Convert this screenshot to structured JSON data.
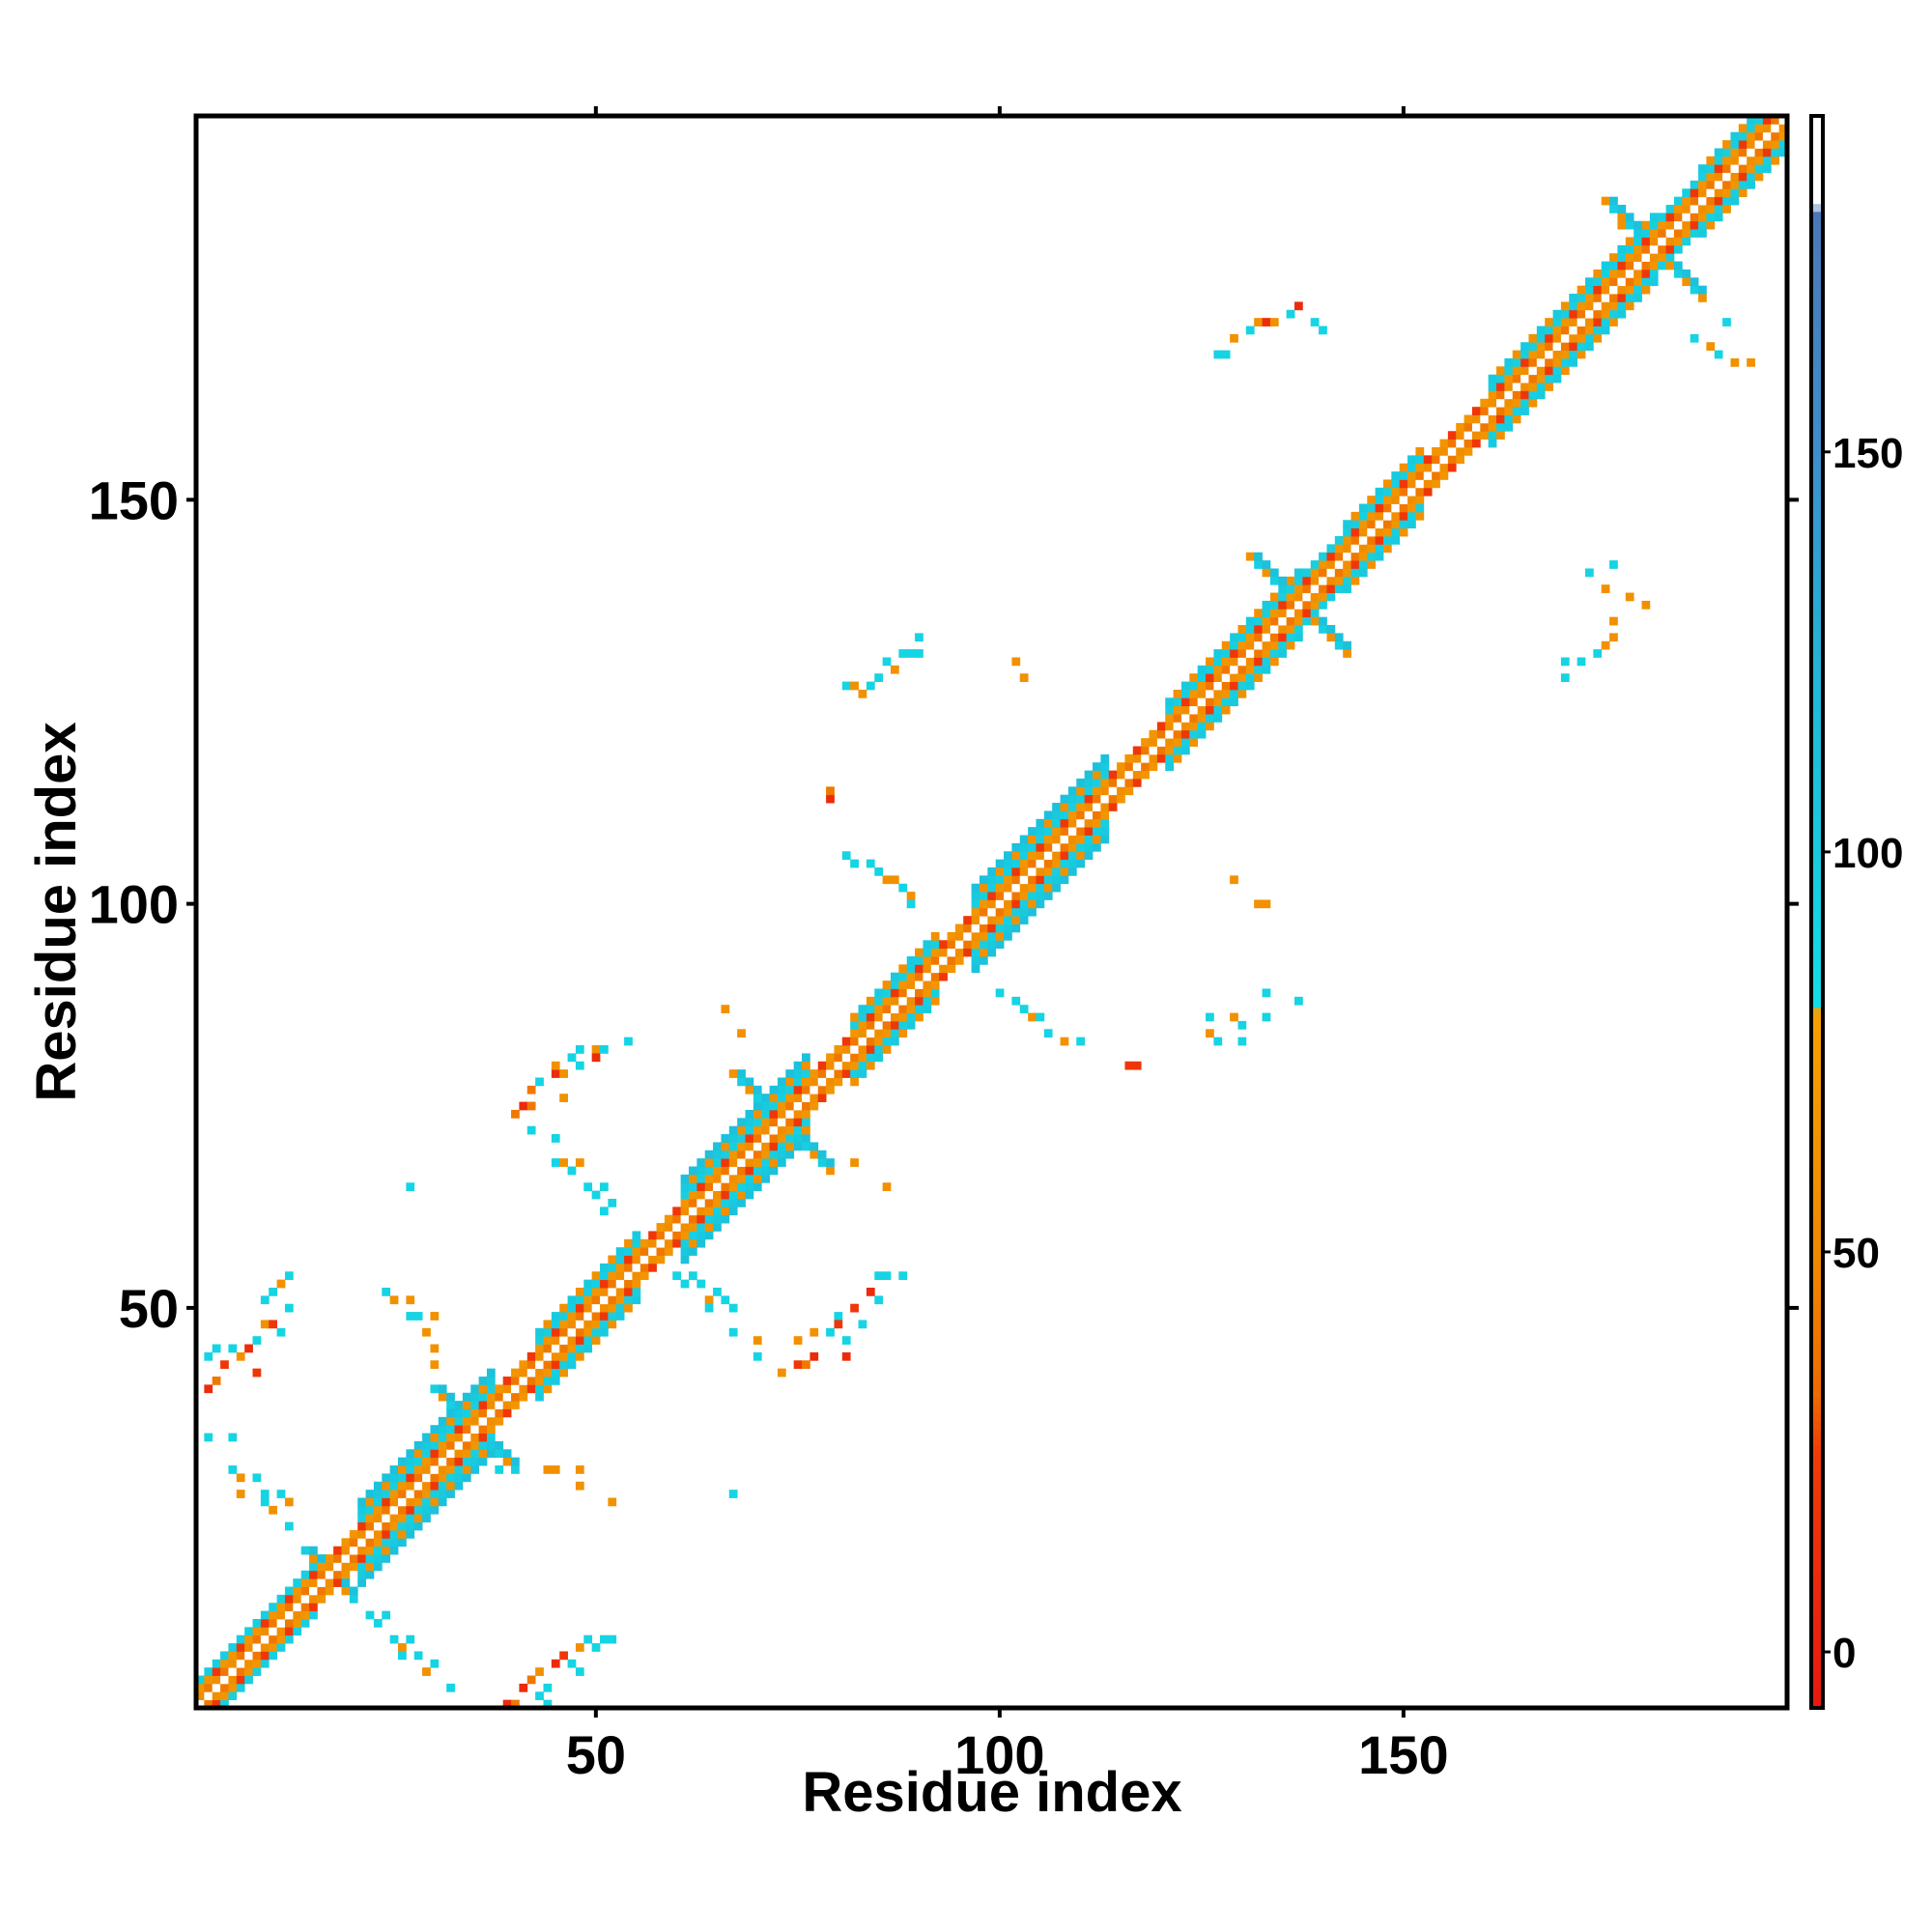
{
  "chart_data": {
    "type": "heatmap",
    "title": "",
    "xlabel": "Residue index",
    "ylabel": "Residue index",
    "xlim": [
      1,
      197
    ],
    "ylim": [
      1,
      197
    ],
    "x_ticks": [
      50,
      100,
      150
    ],
    "y_ticks": [
      50,
      100,
      150
    ],
    "grid": false,
    "colorbar": {
      "ticks": [
        0,
        50,
        100,
        150
      ],
      "range": [
        -7,
        192
      ],
      "bands": [
        {
          "from": -7,
          "to": 30,
          "color": "#e8180f"
        },
        {
          "from": 30,
          "to": 80,
          "color": "#f07a00"
        },
        {
          "from": 80,
          "to": 180,
          "color": "#12dce6"
        },
        {
          "from": 180,
          "to": 192,
          "color": "#ffffff"
        }
      ],
      "stops": [
        {
          "value": -7,
          "color": "#e8180f"
        },
        {
          "value": 25,
          "color": "#f03c08"
        },
        {
          "value": 32,
          "color": "#f06a00"
        },
        {
          "value": 50,
          "color": "#f08a00"
        },
        {
          "value": 80,
          "color": "#f5a000"
        },
        {
          "value": 81,
          "color": "#12dce6"
        },
        {
          "value": 120,
          "color": "#20b8d8"
        },
        {
          "value": 150,
          "color": "#3d8fcc"
        },
        {
          "value": 180,
          "color": "#4a78b8"
        },
        {
          "value": 181,
          "color": "#ffffff"
        },
        {
          "value": 192,
          "color": "#ffffff"
        }
      ]
    },
    "diagonal_band": {
      "x_range": [
        1,
        197
      ],
      "half_width_residues": 4,
      "wide_segments": [
        {
          "from": 1,
          "to": 15,
          "half_width": 3
        },
        {
          "from": 15,
          "to": 20,
          "half_width": 2
        },
        {
          "from": 20,
          "to": 37,
          "half_width": 5
        },
        {
          "from": 37,
          "to": 42,
          "half_width": 2
        },
        {
          "from": 42,
          "to": 55,
          "half_width": 4
        },
        {
          "from": 55,
          "to": 60,
          "half_width": 2
        },
        {
          "from": 60,
          "to": 76,
          "half_width": 5
        },
        {
          "from": 76,
          "to": 81,
          "half_width": 2
        },
        {
          "from": 81,
          "to": 92,
          "half_width": 4
        },
        {
          "from": 92,
          "to": 96,
          "half_width": 2
        },
        {
          "from": 96,
          "to": 113,
          "half_width": 5
        },
        {
          "from": 113,
          "to": 120,
          "half_width": 2
        },
        {
          "from": 120,
          "to": 137,
          "half_width": 4
        },
        {
          "from": 137,
          "to": 142,
          "half_width": 3
        },
        {
          "from": 142,
          "to": 152,
          "half_width": 4
        },
        {
          "from": 152,
          "to": 160,
          "half_width": 2
        },
        {
          "from": 160,
          "to": 181,
          "half_width": 4
        },
        {
          "from": 181,
          "to": 186,
          "half_width": 3
        },
        {
          "from": 186,
          "to": 197,
          "half_width": 4
        }
      ]
    },
    "off_diagonal_contacts": [
      {
        "x": 2,
        "y": 40,
        "v": 10
      },
      {
        "x": 3,
        "y": 41,
        "v": 40
      },
      {
        "x": 2,
        "y": 44,
        "v": 90
      },
      {
        "x": 3,
        "y": 45,
        "v": 90
      },
      {
        "x": 4,
        "y": 43,
        "v": 20
      },
      {
        "x": 5,
        "y": 45,
        "v": 90
      },
      {
        "x": 6,
        "y": 44,
        "v": 60
      },
      {
        "x": 7,
        "y": 45,
        "v": 10
      },
      {
        "x": 8,
        "y": 46,
        "v": 90
      },
      {
        "x": 8,
        "y": 42,
        "v": 20
      },
      {
        "x": 9,
        "y": 48,
        "v": 60
      },
      {
        "x": 10,
        "y": 48,
        "v": 20
      },
      {
        "x": 9,
        "y": 51,
        "v": 90
      },
      {
        "x": 10,
        "y": 52,
        "v": 90
      },
      {
        "x": 11,
        "y": 53,
        "v": 60
      },
      {
        "x": 12,
        "y": 50,
        "v": 90
      },
      {
        "x": 12,
        "y": 54,
        "v": 90
      },
      {
        "x": 11,
        "y": 47,
        "v": 90
      },
      {
        "x": 2,
        "y": 34,
        "v": 90
      },
      {
        "x": 5,
        "y": 34,
        "v": 90
      },
      {
        "x": 5,
        "y": 30,
        "v": 90
      },
      {
        "x": 6,
        "y": 29,
        "v": 60
      },
      {
        "x": 6,
        "y": 27,
        "v": 60
      },
      {
        "x": 8,
        "y": 29,
        "v": 90
      },
      {
        "x": 9,
        "y": 27,
        "v": 90
      },
      {
        "x": 9,
        "y": 26,
        "v": 90
      },
      {
        "x": 10,
        "y": 25,
        "v": 60
      },
      {
        "x": 11,
        "y": 27,
        "v": 90
      },
      {
        "x": 12,
        "y": 23,
        "v": 90
      },
      {
        "x": 12,
        "y": 26,
        "v": 60
      },
      {
        "x": 24,
        "y": 52,
        "v": 90
      },
      {
        "x": 25,
        "y": 51,
        "v": 60
      },
      {
        "x": 27,
        "y": 49,
        "v": 90
      },
      {
        "x": 27,
        "y": 51,
        "v": 60
      },
      {
        "x": 28,
        "y": 49,
        "v": 90
      },
      {
        "x": 30,
        "y": 49,
        "v": 60
      },
      {
        "x": 29,
        "y": 47,
        "v": 60
      },
      {
        "x": 30,
        "y": 45,
        "v": 60
      },
      {
        "x": 30,
        "y": 43,
        "v": 60
      },
      {
        "x": 27,
        "y": 65,
        "v": 90
      },
      {
        "x": 22,
        "y": 12,
        "v": 90
      },
      {
        "x": 23,
        "y": 11,
        "v": 90
      },
      {
        "x": 24,
        "y": 12,
        "v": 90
      },
      {
        "x": 25,
        "y": 9,
        "v": 90
      },
      {
        "x": 26,
        "y": 8,
        "v": 60
      },
      {
        "x": 26,
        "y": 7,
        "v": 90
      },
      {
        "x": 27,
        "y": 9,
        "v": 90
      },
      {
        "x": 28,
        "y": 7,
        "v": 90
      },
      {
        "x": 29,
        "y": 5,
        "v": 60
      },
      {
        "x": 30,
        "y": 6,
        "v": 90
      },
      {
        "x": 32,
        "y": 3,
        "v": 90
      },
      {
        "x": 39,
        "y": 1,
        "v": 10
      },
      {
        "x": 40,
        "y": 1,
        "v": 40
      },
      {
        "x": 41,
        "y": 3,
        "v": 10
      },
      {
        "x": 42,
        "y": 4,
        "v": 40
      },
      {
        "x": 43,
        "y": 2,
        "v": 90
      },
      {
        "x": 43,
        "y": 5,
        "v": 60
      },
      {
        "x": 44,
        "y": 3,
        "v": 90
      },
      {
        "x": 44,
        "y": 1,
        "v": 90
      },
      {
        "x": 45,
        "y": 6,
        "v": 10
      },
      {
        "x": 46,
        "y": 7,
        "v": 20
      },
      {
        "x": 47,
        "y": 6,
        "v": 90
      },
      {
        "x": 48,
        "y": 5,
        "v": 90
      },
      {
        "x": 48,
        "y": 8,
        "v": 60
      },
      {
        "x": 49,
        "y": 9,
        "v": 90
      },
      {
        "x": 50,
        "y": 8,
        "v": 90
      },
      {
        "x": 51,
        "y": 9,
        "v": 90
      },
      {
        "x": 52,
        "y": 9,
        "v": 90
      },
      {
        "x": 38,
        "y": 30,
        "v": 90
      },
      {
        "x": 40,
        "y": 30,
        "v": 90
      },
      {
        "x": 44,
        "y": 30,
        "v": 60
      },
      {
        "x": 45,
        "y": 30,
        "v": 60
      },
      {
        "x": 48,
        "y": 30,
        "v": 60
      },
      {
        "x": 48,
        "y": 28,
        "v": 60
      },
      {
        "x": 52,
        "y": 26,
        "v": 60
      },
      {
        "x": 40,
        "y": 74,
        "v": 40
      },
      {
        "x": 41,
        "y": 75,
        "v": 10
      },
      {
        "x": 42,
        "y": 75,
        "v": 40
      },
      {
        "x": 42,
        "y": 77,
        "v": 40
      },
      {
        "x": 43,
        "y": 78,
        "v": 90
      },
      {
        "x": 45,
        "y": 79,
        "v": 10
      },
      {
        "x": 46,
        "y": 79,
        "v": 60
      },
      {
        "x": 46,
        "y": 76,
        "v": 60
      },
      {
        "x": 45,
        "y": 80,
        "v": 60
      },
      {
        "x": 47,
        "y": 81,
        "v": 90
      },
      {
        "x": 48,
        "y": 80,
        "v": 90
      },
      {
        "x": 48,
        "y": 82,
        "v": 90
      },
      {
        "x": 50,
        "y": 82,
        "v": 60
      },
      {
        "x": 50,
        "y": 81,
        "v": 10
      },
      {
        "x": 51,
        "y": 82,
        "v": 90
      },
      {
        "x": 54,
        "y": 83,
        "v": 90
      },
      {
        "x": 42,
        "y": 72,
        "v": 90
      },
      {
        "x": 45,
        "y": 71,
        "v": 90
      },
      {
        "x": 45,
        "y": 68,
        "v": 90
      },
      {
        "x": 46,
        "y": 68,
        "v": 60
      },
      {
        "x": 47,
        "y": 67,
        "v": 90
      },
      {
        "x": 48,
        "y": 68,
        "v": 60
      },
      {
        "x": 49,
        "y": 65,
        "v": 90
      },
      {
        "x": 50,
        "y": 64,
        "v": 90
      },
      {
        "x": 51,
        "y": 65,
        "v": 90
      },
      {
        "x": 51,
        "y": 62,
        "v": 90
      },
      {
        "x": 52,
        "y": 63,
        "v": 90
      },
      {
        "x": 60,
        "y": 54,
        "v": 90
      },
      {
        "x": 61,
        "y": 53,
        "v": 90
      },
      {
        "x": 62,
        "y": 54,
        "v": 90
      },
      {
        "x": 63,
        "y": 53,
        "v": 90
      },
      {
        "x": 64,
        "y": 51,
        "v": 60
      },
      {
        "x": 65,
        "y": 52,
        "v": 90
      },
      {
        "x": 64,
        "y": 50,
        "v": 90
      },
      {
        "x": 67,
        "y": 47,
        "v": 90
      },
      {
        "x": 66,
        "y": 51,
        "v": 90
      },
      {
        "x": 67,
        "y": 50,
        "v": 90
      },
      {
        "x": 70,
        "y": 46,
        "v": 60
      },
      {
        "x": 70,
        "y": 44,
        "v": 90
      },
      {
        "x": 73,
        "y": 42,
        "v": 60
      },
      {
        "x": 75,
        "y": 43,
        "v": 20
      },
      {
        "x": 76,
        "y": 43,
        "v": 40
      },
      {
        "x": 77,
        "y": 44,
        "v": 10
      },
      {
        "x": 75,
        "y": 46,
        "v": 60
      },
      {
        "x": 77,
        "y": 47,
        "v": 60
      },
      {
        "x": 79,
        "y": 47,
        "v": 90
      },
      {
        "x": 80,
        "y": 49,
        "v": 90
      },
      {
        "x": 80,
        "y": 48,
        "v": 20
      },
      {
        "x": 81,
        "y": 46,
        "v": 90
      },
      {
        "x": 81,
        "y": 44,
        "v": 10
      },
      {
        "x": 82,
        "y": 50,
        "v": 20
      },
      {
        "x": 83,
        "y": 48,
        "v": 90
      },
      {
        "x": 84,
        "y": 52,
        "v": 10
      },
      {
        "x": 85,
        "y": 51,
        "v": 90
      },
      {
        "x": 86,
        "y": 54,
        "v": 90
      },
      {
        "x": 85,
        "y": 54,
        "v": 90
      },
      {
        "x": 88,
        "y": 54,
        "v": 90
      },
      {
        "x": 66,
        "y": 87,
        "v": 60
      },
      {
        "x": 68,
        "y": 84,
        "v": 60
      },
      {
        "x": 67,
        "y": 27,
        "v": 90
      },
      {
        "x": 74,
        "y": 70,
        "v": 90
      },
      {
        "x": 76,
        "y": 70,
        "v": 90
      },
      {
        "x": 78,
        "y": 69,
        "v": 90
      },
      {
        "x": 82,
        "y": 68,
        "v": 60
      },
      {
        "x": 86,
        "y": 65,
        "v": 60
      },
      {
        "x": 81,
        "y": 127,
        "v": 90
      },
      {
        "x": 82,
        "y": 127,
        "v": 60
      },
      {
        "x": 83,
        "y": 126,
        "v": 60
      },
      {
        "x": 84,
        "y": 127,
        "v": 90
      },
      {
        "x": 85,
        "y": 128,
        "v": 90
      },
      {
        "x": 86,
        "y": 130,
        "v": 90
      },
      {
        "x": 87,
        "y": 129,
        "v": 60
      },
      {
        "x": 88,
        "y": 131,
        "v": 90
      },
      {
        "x": 89,
        "y": 131,
        "v": 90
      },
      {
        "x": 90,
        "y": 131,
        "v": 90
      },
      {
        "x": 90,
        "y": 133,
        "v": 90
      },
      {
        "x": 79,
        "y": 113,
        "v": 10
      },
      {
        "x": 79,
        "y": 114,
        "v": 40
      },
      {
        "x": 81,
        "y": 106,
        "v": 90
      },
      {
        "x": 82,
        "y": 105,
        "v": 90
      },
      {
        "x": 84,
        "y": 105,
        "v": 90
      },
      {
        "x": 85,
        "y": 104,
        "v": 90
      },
      {
        "x": 86,
        "y": 103,
        "v": 60
      },
      {
        "x": 87,
        "y": 103,
        "v": 60
      },
      {
        "x": 88,
        "y": 102,
        "v": 90
      },
      {
        "x": 89,
        "y": 101,
        "v": 60
      },
      {
        "x": 89,
        "y": 100,
        "v": 90
      },
      {
        "x": 102,
        "y": 130,
        "v": 60
      },
      {
        "x": 103,
        "y": 128,
        "v": 60
      },
      {
        "x": 100,
        "y": 89,
        "v": 90
      },
      {
        "x": 102,
        "y": 88,
        "v": 90
      },
      {
        "x": 103,
        "y": 87,
        "v": 90
      },
      {
        "x": 104,
        "y": 86,
        "v": 60
      },
      {
        "x": 105,
        "y": 86,
        "v": 90
      },
      {
        "x": 106,
        "y": 84,
        "v": 90
      },
      {
        "x": 108,
        "y": 83,
        "v": 60
      },
      {
        "x": 110,
        "y": 83,
        "v": 90
      },
      {
        "x": 116,
        "y": 80,
        "v": 20
      },
      {
        "x": 117,
        "y": 80,
        "v": 20
      },
      {
        "x": 129,
        "y": 103,
        "v": 60
      },
      {
        "x": 132,
        "y": 100,
        "v": 60
      },
      {
        "x": 133,
        "y": 100,
        "v": 60
      },
      {
        "x": 126,
        "y": 84,
        "v": 60
      },
      {
        "x": 127,
        "y": 83,
        "v": 90
      },
      {
        "x": 126,
        "y": 86,
        "v": 90
      },
      {
        "x": 129,
        "y": 86,
        "v": 60
      },
      {
        "x": 130,
        "y": 85,
        "v": 90
      },
      {
        "x": 130,
        "y": 83,
        "v": 90
      },
      {
        "x": 133,
        "y": 86,
        "v": 90
      },
      {
        "x": 133,
        "y": 89,
        "v": 90
      },
      {
        "x": 137,
        "y": 88,
        "v": 90
      },
      {
        "x": 127,
        "y": 168,
        "v": 90
      },
      {
        "x": 128,
        "y": 168,
        "v": 90
      },
      {
        "x": 129,
        "y": 170,
        "v": 60
      },
      {
        "x": 131,
        "y": 171,
        "v": 90
      },
      {
        "x": 132,
        "y": 172,
        "v": 60
      },
      {
        "x": 133,
        "y": 172,
        "v": 10
      },
      {
        "x": 134,
        "y": 172,
        "v": 60
      },
      {
        "x": 136,
        "y": 173,
        "v": 90
      },
      {
        "x": 137,
        "y": 174,
        "v": 10
      },
      {
        "x": 139,
        "y": 172,
        "v": 90
      },
      {
        "x": 140,
        "y": 171,
        "v": 90
      },
      {
        "x": 170,
        "y": 130,
        "v": 90
      },
      {
        "x": 170,
        "y": 128,
        "v": 90
      },
      {
        "x": 172,
        "y": 130,
        "v": 90
      },
      {
        "x": 174,
        "y": 131,
        "v": 90
      },
      {
        "x": 175,
        "y": 132,
        "v": 60
      },
      {
        "x": 176,
        "y": 133,
        "v": 60
      },
      {
        "x": 176,
        "y": 135,
        "v": 60
      },
      {
        "x": 178,
        "y": 138,
        "v": 60
      },
      {
        "x": 175,
        "y": 139,
        "v": 60
      },
      {
        "x": 180,
        "y": 137,
        "v": 60
      },
      {
        "x": 173,
        "y": 141,
        "v": 90
      },
      {
        "x": 176,
        "y": 142,
        "v": 90
      },
      {
        "x": 177,
        "y": 184,
        "v": 60
      },
      {
        "x": 176,
        "y": 186,
        "v": 60
      },
      {
        "x": 179,
        "y": 184,
        "v": 90
      },
      {
        "x": 180,
        "y": 183,
        "v": 90
      },
      {
        "x": 186,
        "y": 170,
        "v": 90
      },
      {
        "x": 188,
        "y": 169,
        "v": 60
      },
      {
        "x": 189,
        "y": 168,
        "v": 90
      },
      {
        "x": 191,
        "y": 167,
        "v": 60
      },
      {
        "x": 193,
        "y": 167,
        "v": 60
      },
      {
        "x": 190,
        "y": 172,
        "v": 90
      }
    ],
    "junction_crosses": [
      {
        "x": 17,
        "y": 17,
        "size": 3
      },
      {
        "x": 35,
        "y": 35,
        "size": 5
      },
      {
        "x": 73,
        "y": 73,
        "size": 6
      },
      {
        "x": 137,
        "y": 137,
        "size": 6
      },
      {
        "x": 181,
        "y": 181,
        "size": 6
      }
    ]
  }
}
